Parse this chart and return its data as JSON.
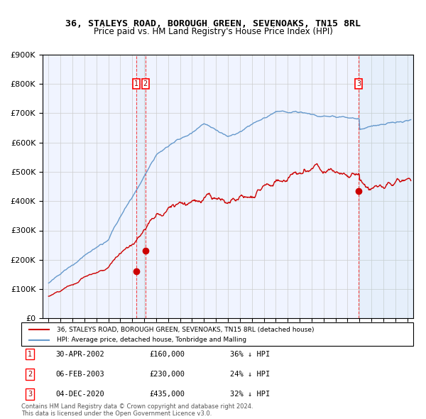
{
  "title": "36, STALEYS ROAD, BOROUGH GREEN, SEVENOAKS, TN15 8RL",
  "subtitle": "Price paid vs. HM Land Registry's House Price Index (HPI)",
  "legend_line1": "36, STALEYS ROAD, BOROUGH GREEN, SEVENOAKS, TN15 8RL (detached house)",
  "legend_line2": "HPI: Average price, detached house, Tonbridge and Malling",
  "footnote": "Contains HM Land Registry data © Crown copyright and database right 2024.\nThis data is licensed under the Open Government Licence v3.0.",
  "red_color": "#cc0000",
  "blue_color": "#6699cc",
  "bg_color": "#ffffff",
  "plot_bg": "#f8f8ff",
  "grid_color": "#cccccc",
  "transactions": [
    {
      "id": 1,
      "date_label": "30-APR-2002",
      "price": 160000,
      "pct": "36% ↓ HPI",
      "year_x": 2002.33
    },
    {
      "id": 2,
      "date_label": "06-FEB-2003",
      "price": 230000,
      "pct": "24% ↓ HPI",
      "year_x": 2003.1
    },
    {
      "id": 3,
      "date_label": "04-DEC-2020",
      "price": 435000,
      "pct": "32% ↓ HPI",
      "year_x": 2020.92
    }
  ],
  "ylim": [
    0,
    900000
  ],
  "xlim_start": 1995,
  "xlim_end": 2025.5
}
